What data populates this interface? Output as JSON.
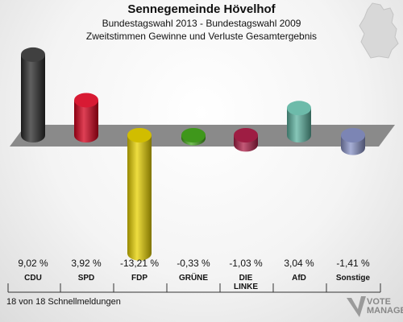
{
  "header": {
    "title": "Sennegemeinde Hövelhof",
    "subtitle1": "Bundestagswahl 2013 - Bundestagswahl 2009",
    "subtitle2": "Zweitstimmen Gewinne und Verluste Gesamtergebnis"
  },
  "footer": {
    "status": "18 von 18 Schnellmeldungen"
  },
  "logo": {
    "line1": "VOTE",
    "line2": "MANAGER"
  },
  "chart_data": {
    "type": "bar",
    "categories": [
      "CDU",
      "SPD",
      "FDP",
      "GRÜNE",
      "DIE LINKE",
      "AfD",
      "Sonstige"
    ],
    "tick_labels": [
      "CDU",
      "SPD",
      "FDP",
      "GRÜNE",
      "DIE\nLINKE",
      "AfD",
      "Sonstige"
    ],
    "values": [
      9.02,
      3.92,
      -13.21,
      -0.33,
      -1.03,
      3.04,
      -1.41
    ],
    "value_labels": [
      "9,02 %",
      "3,92 %",
      "-13,21 %",
      "-0,33 %",
      "-1,03 %",
      "3,04 %",
      "-1,41 %"
    ],
    "colors": [
      "#2b2b2b",
      "#d4001c",
      "#e8d200",
      "#46a81e",
      "#b0204a",
      "#5db3a0",
      "#8a94c8"
    ],
    "ylim": [
      -14,
      10
    ],
    "grid": false,
    "legend": "none"
  }
}
